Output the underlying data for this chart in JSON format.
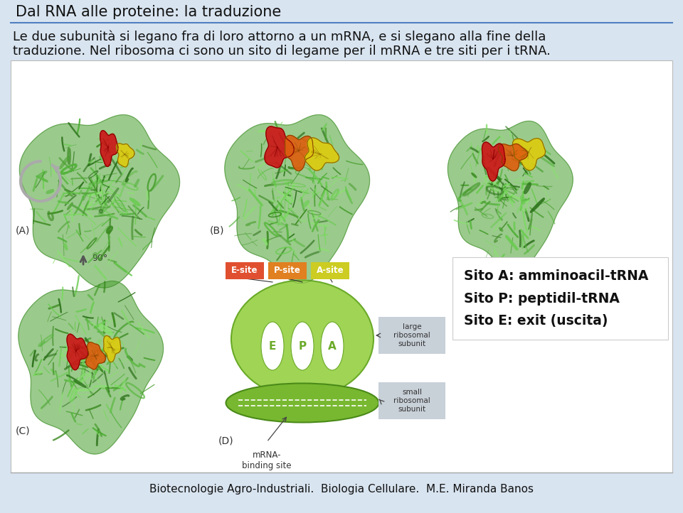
{
  "title": "Dal RNA alle proteine: la traduzione",
  "subtitle_line1": "Le due subunità si legano fra di loro attorno a un mRNA, e si slegano alla fine della",
  "subtitle_line2": "traduzione. Nel ribosoma ci sono un sito di legame per il mRNA e tre siti per i tRNA.",
  "footer": "Biotecnologie Agro-Industriali.  Biologia Cellulare.  M.E. Miranda Banos",
  "bg_color": "#d8e4f0",
  "white_bg": "#ffffff",
  "label_A": "(A)",
  "label_B": "(B)",
  "label_C": "(C)",
  "label_D": "(D)",
  "angle_label": "90°",
  "esite_label": "E-site",
  "psite_label": "P-site",
  "asite_label": "A-site",
  "large_label": "large\nribosomal\nsubunit",
  "small_label": "small\nribosomal\nsubunit",
  "mrna_label": "mRNA-\nbinding site",
  "sito_A": "Sito A: amminoacil-tRNA",
  "sito_P": "Sito P: peptidil-tRNA",
  "sito_E": "Sito E: exit (uscita)",
  "esite_color": "#e05030",
  "psite_color": "#e08020",
  "asite_color": "#cccc22",
  "large_sub_color": "#90c840",
  "small_sub_color": "#70a828",
  "separator_color": "#5080c0",
  "title_color": "#111111",
  "text_color": "#111111",
  "footer_color": "#111111",
  "panel_edge": "#bbbbbb",
  "green1": "#3a8a20",
  "green2": "#4aa030",
  "green3": "#5ab840",
  "green4": "#6acc50",
  "green5": "#7ada60",
  "green6": "#2a7018",
  "green7": "#8ae070",
  "red_site": "#cc1818",
  "orange_site": "#dd6010",
  "yellow_site": "#ddcc10"
}
